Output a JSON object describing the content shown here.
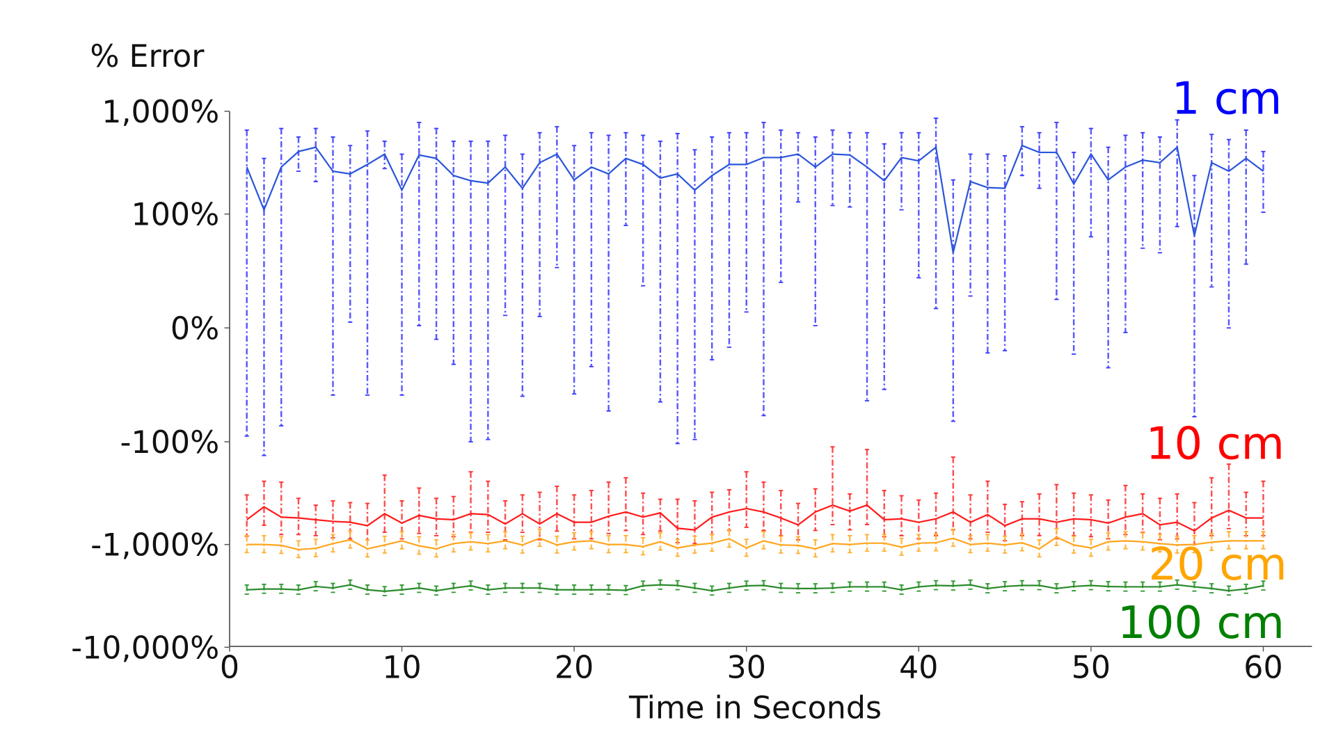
{
  "chart_data": {
    "type": "line",
    "title": "",
    "ylabel": "% Error",
    "xlabel": "Time in Seconds",
    "yscale": "symlog",
    "ylim": [
      -10000,
      1000
    ],
    "xlim": [
      0,
      63
    ],
    "grid": false,
    "xticks": [
      0,
      10,
      20,
      30,
      40,
      50,
      60
    ],
    "xtick_labels": [
      "0",
      "10",
      "20",
      "30",
      "40",
      "50",
      "60"
    ],
    "yticks": [
      1000,
      100,
      0,
      -100,
      -1000,
      -10000
    ],
    "ytick_labels": [
      "1,000%",
      "100%",
      "0%",
      "-100%",
      "-1,000%",
      "-10,000%"
    ],
    "x": [
      1,
      2,
      3,
      4,
      5,
      6,
      7,
      8,
      9,
      10,
      11,
      12,
      13,
      14,
      15,
      16,
      17,
      18,
      19,
      20,
      21,
      22,
      23,
      24,
      25,
      26,
      27,
      28,
      29,
      30,
      31,
      32,
      33,
      34,
      35,
      36,
      37,
      38,
      39,
      40,
      41,
      42,
      43,
      44,
      45,
      46,
      47,
      48,
      49,
      50,
      51,
      52,
      53,
      54,
      55,
      56,
      57,
      58,
      59,
      60
    ],
    "series": [
      {
        "name": "1 cm",
        "label_color": "#0000ff",
        "line_color": "#2a55d8",
        "bar_color": "#3b3bff",
        "mean": [
          287,
          110,
          287,
          406,
          447,
          261,
          246,
          304,
          383,
          171,
          376,
          348,
          237,
          211,
          200,
          287,
          178,
          316,
          383,
          215,
          287,
          246,
          348,
          304,
          224,
          246,
          171,
          237,
          304,
          304,
          355,
          355,
          383,
          287,
          383,
          376,
          287,
          211,
          355,
          329,
          447,
          66,
          207,
          181,
          178,
          464,
          398,
          398,
          196,
          383,
          215,
          287,
          335,
          316,
          447,
          81,
          316,
          261,
          348,
          261
        ],
        "upper": [
          656,
          348,
          681,
          562,
          681,
          562,
          464,
          643,
          511,
          383,
          779,
          681,
          511,
          511,
          511,
          584,
          383,
          619,
          708,
          464,
          619,
          584,
          619,
          584,
          511,
          608,
          422,
          562,
          619,
          619,
          779,
          656,
          619,
          562,
          656,
          619,
          619,
          482,
          619,
          619,
          858,
          215,
          383,
          383,
          369,
          708,
          619,
          779,
          398,
          681,
          447,
          584,
          619,
          562,
          825,
          237,
          596,
          531,
          656,
          406
        ],
        "lower": [
          -95,
          -136,
          -86,
          261,
          207,
          -59,
          5,
          -59,
          277,
          -59,
          2,
          -10,
          -32,
          -100,
          -98,
          11,
          -60,
          10,
          53,
          -58,
          -34,
          -73,
          90,
          37,
          -65,
          -104,
          -98,
          -28,
          -17,
          14,
          -77,
          40,
          131,
          2,
          121,
          117,
          -64,
          -54,
          110,
          44,
          17,
          -82,
          28,
          -22,
          -20,
          237,
          178,
          25,
          -23,
          80,
          -35,
          -4,
          70,
          66,
          89,
          -78,
          36,
          0,
          56,
          104
        ]
      },
      {
        "name": "10 cm",
        "label_color": "#ff0000",
        "line_color": "#ff1a1a",
        "bar_color": "#ff3030",
        "mean": [
          -573,
          -430,
          -541,
          -552,
          -573,
          -596,
          -607,
          -656,
          -501,
          -619,
          -521,
          -562,
          -573,
          -501,
          -511,
          -631,
          -501,
          -631,
          -501,
          -607,
          -607,
          -531,
          -482,
          -541,
          -492,
          -695,
          -722,
          -541,
          -482,
          -447,
          -482,
          -552,
          -643,
          -482,
          -414,
          -473,
          -414,
          -573,
          -562,
          -607,
          -562,
          -482,
          -607,
          -511,
          -656,
          -562,
          -562,
          -607,
          -562,
          -573,
          -619,
          -541,
          -501,
          -643,
          -607,
          -736,
          -552,
          -464,
          -552,
          -552
        ],
        "upper": [
          -329,
          -242,
          -247,
          -355,
          -414,
          -376,
          -391,
          -398,
          -211,
          -376,
          -282,
          -355,
          -341,
          -196,
          -242,
          -376,
          -329,
          -310,
          -271,
          -329,
          -298,
          -247,
          -224,
          -316,
          -362,
          -362,
          -376,
          -310,
          -293,
          -196,
          -247,
          -298,
          -398,
          -287,
          -112,
          -322,
          -119,
          -298,
          -335,
          -369,
          -316,
          -141,
          -329,
          -242,
          -406,
          -383,
          -322,
          -261,
          -316,
          -329,
          -369,
          -266,
          -322,
          -355,
          -322,
          -391,
          -224,
          -165,
          -310,
          -242
        ],
        "lower": [
          -830,
          -650,
          -800,
          -800,
          -820,
          -860,
          -880,
          -900,
          -760,
          -880,
          -780,
          -820,
          -840,
          -760,
          -760,
          -900,
          -760,
          -900,
          -740,
          -880,
          -880,
          -780,
          -730,
          -800,
          -740,
          -960,
          -980,
          -800,
          -730,
          -680,
          -730,
          -820,
          -900,
          -730,
          -640,
          -720,
          -640,
          -840,
          -820,
          -880,
          -820,
          -720,
          -880,
          -760,
          -920,
          -820,
          -820,
          -880,
          -820,
          -840,
          -880,
          -800,
          -760,
          -900,
          -880,
          -1000,
          -820,
          -700,
          -820,
          -820
        ]
      },
      {
        "name": "20 cm",
        "label_color": "#ffa500",
        "line_color": "#ffa51e",
        "bar_color": "#ffb030",
        "mean": [
          -1000,
          -1000,
          -1020,
          -1120,
          -1090,
          -980,
          -900,
          -1100,
          -1010,
          -920,
          -1030,
          -1100,
          -980,
          -940,
          -980,
          -920,
          -1010,
          -870,
          -1010,
          -940,
          -920,
          -1000,
          -1000,
          -1050,
          -940,
          -1080,
          -1010,
          -970,
          -880,
          -1080,
          -920,
          -1010,
          -1020,
          -1100,
          -980,
          -1000,
          -970,
          -970,
          -1060,
          -970,
          -960,
          -870,
          -1000,
          -970,
          -1010,
          -960,
          -1100,
          -850,
          -1010,
          -1080,
          -940,
          -920,
          -940,
          -980,
          -1010,
          -1000,
          -950,
          -920,
          -920,
          -920
        ],
        "upper": [
          -820,
          -820,
          -840,
          -920,
          -890,
          -800,
          -740,
          -900,
          -830,
          -750,
          -840,
          -900,
          -800,
          -770,
          -800,
          -750,
          -830,
          -710,
          -830,
          -770,
          -750,
          -820,
          -820,
          -860,
          -770,
          -890,
          -830,
          -800,
          -720,
          -890,
          -750,
          -830,
          -840,
          -900,
          -800,
          -820,
          -800,
          -800,
          -870,
          -800,
          -790,
          -710,
          -820,
          -800,
          -830,
          -790,
          -900,
          -700,
          -830,
          -890,
          -770,
          -750,
          -770,
          -800,
          -830,
          -820,
          -780,
          -750,
          -750,
          -750
        ],
        "lower": [
          -1200,
          -1200,
          -1220,
          -1340,
          -1310,
          -1180,
          -1080,
          -1320,
          -1210,
          -1100,
          -1240,
          -1320,
          -1180,
          -1130,
          -1180,
          -1100,
          -1210,
          -1040,
          -1210,
          -1130,
          -1100,
          -1200,
          -1200,
          -1260,
          -1130,
          -1300,
          -1210,
          -1160,
          -1060,
          -1300,
          -1100,
          -1210,
          -1220,
          -1320,
          -1180,
          -1200,
          -1160,
          -1160,
          -1270,
          -1160,
          -1150,
          -1040,
          -1200,
          -1160,
          -1210,
          -1150,
          -1320,
          -1020,
          -1210,
          -1300,
          -1130,
          -1100,
          -1130,
          -1180,
          -1210,
          -1200,
          -1140,
          -1100,
          -1100,
          -1100
        ]
      },
      {
        "name": "100 cm",
        "label_color": "#008000",
        "line_color": "#2a8a2a",
        "bar_color": "#2e9a2e",
        "mean": [
          -2760,
          -2710,
          -2710,
          -2760,
          -2560,
          -2650,
          -2470,
          -2760,
          -2850,
          -2760,
          -2650,
          -2820,
          -2650,
          -2520,
          -2760,
          -2650,
          -2650,
          -2650,
          -2760,
          -2760,
          -2760,
          -2760,
          -2790,
          -2520,
          -2470,
          -2500,
          -2650,
          -2820,
          -2650,
          -2520,
          -2500,
          -2650,
          -2680,
          -2680,
          -2650,
          -2580,
          -2580,
          -2580,
          -2760,
          -2580,
          -2500,
          -2520,
          -2470,
          -2680,
          -2560,
          -2500,
          -2500,
          -2680,
          -2560,
          -2500,
          -2560,
          -2580,
          -2580,
          -2580,
          -2470,
          -2580,
          -2680,
          -2820,
          -2710,
          -2520
        ],
        "upper": [
          -2480,
          -2440,
          -2440,
          -2480,
          -2300,
          -2390,
          -2220,
          -2480,
          -2570,
          -2480,
          -2390,
          -2540,
          -2390,
          -2270,
          -2480,
          -2390,
          -2390,
          -2390,
          -2480,
          -2480,
          -2480,
          -2480,
          -2510,
          -2270,
          -2220,
          -2250,
          -2390,
          -2540,
          -2390,
          -2270,
          -2250,
          -2390,
          -2410,
          -2410,
          -2390,
          -2320,
          -2320,
          -2320,
          -2480,
          -2320,
          -2250,
          -2270,
          -2220,
          -2410,
          -2300,
          -2250,
          -2250,
          -2410,
          -2300,
          -2250,
          -2300,
          -2320,
          -2320,
          -2320,
          -2220,
          -2320,
          -2410,
          -2540,
          -2440,
          -2270
        ],
        "lower": [
          -3040,
          -2980,
          -2980,
          -3040,
          -2820,
          -2920,
          -2720,
          -3040,
          -3140,
          -3040,
          -2920,
          -3100,
          -2920,
          -2770,
          -3040,
          -2920,
          -2920,
          -2920,
          -3040,
          -3040,
          -3040,
          -3040,
          -3070,
          -2770,
          -2720,
          -2750,
          -2920,
          -3100,
          -2920,
          -2770,
          -2750,
          -2920,
          -2950,
          -2950,
          -2920,
          -2840,
          -2840,
          -2840,
          -3040,
          -2840,
          -2750,
          -2770,
          -2720,
          -2950,
          -2820,
          -2750,
          -2750,
          -2950,
          -2820,
          -2750,
          -2820,
          -2840,
          -2840,
          -2840,
          -2720,
          -2840,
          -2950,
          -3100,
          -2980,
          -2770
        ]
      }
    ]
  }
}
